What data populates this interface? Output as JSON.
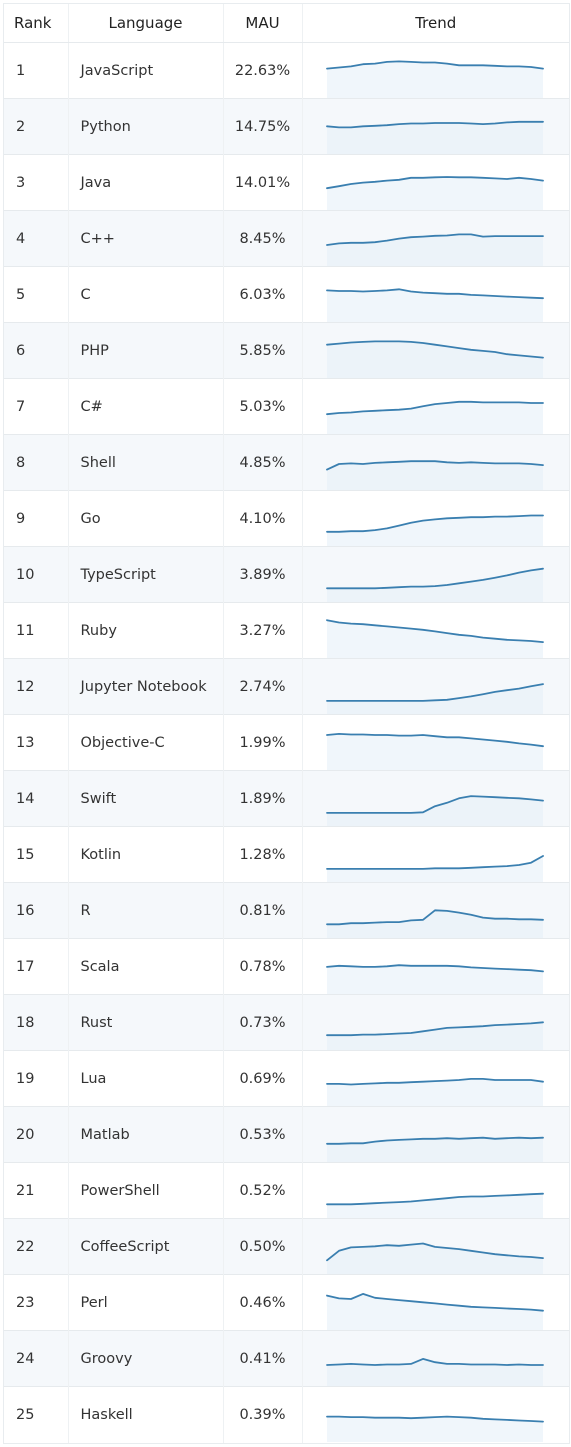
{
  "columns": {
    "rank": "Rank",
    "language": "Language",
    "mau": "MAU",
    "trend": "Trend"
  },
  "colors": {
    "line": "#3a7fb0",
    "fill": "#e3eef8",
    "alt_row": "#f5f8fb",
    "grid": "#e6eaed"
  },
  "rows": [
    {
      "rank": "1",
      "language": "JavaScript",
      "mau": "22.63%",
      "trend": [
        0.62,
        0.66,
        0.7,
        0.78,
        0.8,
        0.86,
        0.88,
        0.86,
        0.84,
        0.84,
        0.8,
        0.74,
        0.74,
        0.74,
        0.72,
        0.7,
        0.7,
        0.68,
        0.62
      ]
    },
    {
      "rank": "2",
      "language": "Python",
      "mau": "14.75%",
      "trend": [
        0.56,
        0.52,
        0.52,
        0.56,
        0.58,
        0.6,
        0.64,
        0.66,
        0.66,
        0.68,
        0.68,
        0.68,
        0.66,
        0.64,
        0.66,
        0.7,
        0.72,
        0.72,
        0.72
      ]
    },
    {
      "rank": "3",
      "language": "Java",
      "mau": "14.01%",
      "trend": [
        0.35,
        0.42,
        0.5,
        0.55,
        0.58,
        0.62,
        0.65,
        0.72,
        0.72,
        0.74,
        0.75,
        0.74,
        0.74,
        0.72,
        0.7,
        0.68,
        0.72,
        0.68,
        0.62
      ]
    },
    {
      "rank": "4",
      "language": "C++",
      "mau": "8.45%",
      "trend": [
        0.32,
        0.38,
        0.4,
        0.4,
        0.42,
        0.48,
        0.55,
        0.6,
        0.62,
        0.65,
        0.66,
        0.7,
        0.7,
        0.62,
        0.64,
        0.64,
        0.64,
        0.64,
        0.64
      ]
    },
    {
      "rank": "5",
      "language": "C",
      "mau": "6.03%",
      "trend": [
        0.7,
        0.68,
        0.68,
        0.66,
        0.68,
        0.7,
        0.74,
        0.66,
        0.62,
        0.6,
        0.58,
        0.58,
        0.54,
        0.52,
        0.5,
        0.48,
        0.46,
        0.44,
        0.42
      ]
    },
    {
      "rank": "6",
      "language": "PHP",
      "mau": "5.85%",
      "trend": [
        0.76,
        0.8,
        0.84,
        0.86,
        0.88,
        0.88,
        0.88,
        0.86,
        0.82,
        0.76,
        0.7,
        0.64,
        0.58,
        0.54,
        0.5,
        0.42,
        0.38,
        0.34,
        0.3
      ]
    },
    {
      "rank": "7",
      "language": "C#",
      "mau": "5.03%",
      "trend": [
        0.28,
        0.32,
        0.34,
        0.38,
        0.4,
        0.42,
        0.44,
        0.48,
        0.56,
        0.64,
        0.68,
        0.72,
        0.72,
        0.7,
        0.7,
        0.7,
        0.7,
        0.68,
        0.68
      ]
    },
    {
      "rank": "8",
      "language": "Shell",
      "mau": "4.85%",
      "trend": [
        0.3,
        0.5,
        0.52,
        0.5,
        0.54,
        0.56,
        0.58,
        0.6,
        0.6,
        0.6,
        0.56,
        0.54,
        0.56,
        0.54,
        0.52,
        0.52,
        0.52,
        0.5,
        0.46
      ]
    },
    {
      "rank": "9",
      "language": "Go",
      "mau": "4.10%",
      "trend": [
        0.08,
        0.08,
        0.1,
        0.1,
        0.14,
        0.2,
        0.3,
        0.4,
        0.48,
        0.52,
        0.56,
        0.58,
        0.6,
        0.6,
        0.62,
        0.62,
        0.64,
        0.66,
        0.66
      ]
    },
    {
      "rank": "10",
      "language": "TypeScript",
      "mau": "3.89%",
      "trend": [
        0.06,
        0.06,
        0.06,
        0.06,
        0.06,
        0.08,
        0.1,
        0.12,
        0.12,
        0.14,
        0.18,
        0.24,
        0.3,
        0.36,
        0.44,
        0.52,
        0.62,
        0.7,
        0.76
      ]
    },
    {
      "rank": "11",
      "language": "Ruby",
      "mau": "3.27%",
      "trend": [
        0.92,
        0.84,
        0.8,
        0.78,
        0.74,
        0.7,
        0.66,
        0.62,
        0.58,
        0.52,
        0.46,
        0.4,
        0.36,
        0.3,
        0.26,
        0.22,
        0.2,
        0.18,
        0.14
      ]
    },
    {
      "rank": "12",
      "language": "Jupyter Notebook",
      "mau": "2.74%",
      "trend": [
        0.04,
        0.04,
        0.04,
        0.04,
        0.04,
        0.04,
        0.04,
        0.04,
        0.04,
        0.06,
        0.08,
        0.14,
        0.2,
        0.28,
        0.36,
        0.42,
        0.48,
        0.56,
        0.64
      ]
    },
    {
      "rank": "13",
      "language": "Objective-C",
      "mau": "1.99%",
      "trend": [
        0.82,
        0.86,
        0.84,
        0.84,
        0.82,
        0.82,
        0.8,
        0.8,
        0.82,
        0.78,
        0.74,
        0.74,
        0.7,
        0.66,
        0.62,
        0.58,
        0.52,
        0.48,
        0.42
      ]
    },
    {
      "rank": "14",
      "language": "Swift",
      "mau": "1.89%",
      "trend": [
        0.04,
        0.04,
        0.04,
        0.04,
        0.04,
        0.04,
        0.04,
        0.04,
        0.06,
        0.28,
        0.4,
        0.56,
        0.64,
        0.62,
        0.6,
        0.58,
        0.56,
        0.52,
        0.48
      ]
    },
    {
      "rank": "15",
      "language": "Kotlin",
      "mau": "1.28%",
      "trend": [
        0.04,
        0.04,
        0.04,
        0.04,
        0.04,
        0.04,
        0.04,
        0.04,
        0.04,
        0.06,
        0.06,
        0.06,
        0.08,
        0.1,
        0.12,
        0.14,
        0.18,
        0.26,
        0.5
      ]
    },
    {
      "rank": "16",
      "language": "R",
      "mau": "0.81%",
      "trend": [
        0.06,
        0.06,
        0.1,
        0.1,
        0.12,
        0.14,
        0.14,
        0.2,
        0.22,
        0.56,
        0.54,
        0.48,
        0.4,
        0.3,
        0.26,
        0.26,
        0.24,
        0.24,
        0.22
      ]
    },
    {
      "rank": "17",
      "language": "Scala",
      "mau": "0.78%",
      "trend": [
        0.54,
        0.58,
        0.56,
        0.54,
        0.54,
        0.56,
        0.6,
        0.58,
        0.58,
        0.58,
        0.58,
        0.56,
        0.52,
        0.5,
        0.48,
        0.46,
        0.44,
        0.42,
        0.38
      ]
    },
    {
      "rank": "18",
      "language": "Rust",
      "mau": "0.73%",
      "trend": [
        0.1,
        0.1,
        0.1,
        0.12,
        0.12,
        0.14,
        0.16,
        0.18,
        0.24,
        0.3,
        0.36,
        0.38,
        0.4,
        0.42,
        0.46,
        0.48,
        0.5,
        0.52,
        0.56
      ]
    },
    {
      "rank": "19",
      "language": "Lua",
      "mau": "0.69%",
      "trend": [
        0.36,
        0.36,
        0.34,
        0.36,
        0.38,
        0.4,
        0.4,
        0.42,
        0.44,
        0.46,
        0.48,
        0.5,
        0.54,
        0.54,
        0.5,
        0.5,
        0.5,
        0.5,
        0.44
      ]
    },
    {
      "rank": "20",
      "language": "Matlab",
      "mau": "0.53%",
      "trend": [
        0.22,
        0.22,
        0.24,
        0.24,
        0.3,
        0.34,
        0.36,
        0.38,
        0.4,
        0.4,
        0.42,
        0.4,
        0.42,
        0.44,
        0.4,
        0.42,
        0.44,
        0.42,
        0.44
      ]
    },
    {
      "rank": "21",
      "language": "PowerShell",
      "mau": "0.52%",
      "trend": [
        0.06,
        0.06,
        0.06,
        0.08,
        0.1,
        0.12,
        0.14,
        0.16,
        0.2,
        0.24,
        0.28,
        0.32,
        0.34,
        0.34,
        0.36,
        0.38,
        0.4,
        0.42,
        0.44
      ]
    },
    {
      "rank": "22",
      "language": "CoffeeScript",
      "mau": "0.50%",
      "trend": [
        0.06,
        0.4,
        0.52,
        0.54,
        0.56,
        0.6,
        0.58,
        0.62,
        0.66,
        0.54,
        0.5,
        0.46,
        0.4,
        0.34,
        0.28,
        0.24,
        0.2,
        0.18,
        0.14
      ]
    },
    {
      "rank": "23",
      "language": "Perl",
      "mau": "0.46%",
      "trend": [
        0.8,
        0.7,
        0.68,
        0.86,
        0.72,
        0.68,
        0.64,
        0.6,
        0.56,
        0.52,
        0.48,
        0.44,
        0.4,
        0.38,
        0.36,
        0.34,
        0.32,
        0.3,
        0.26
      ]
    },
    {
      "rank": "24",
      "language": "Groovy",
      "mau": "0.41%",
      "trend": [
        0.32,
        0.34,
        0.36,
        0.34,
        0.32,
        0.34,
        0.34,
        0.36,
        0.54,
        0.42,
        0.36,
        0.36,
        0.34,
        0.34,
        0.34,
        0.32,
        0.34,
        0.32,
        0.32
      ]
    },
    {
      "rank": "25",
      "language": "Haskell",
      "mau": "0.39%",
      "trend": [
        0.48,
        0.48,
        0.46,
        0.46,
        0.44,
        0.44,
        0.44,
        0.42,
        0.44,
        0.46,
        0.48,
        0.46,
        0.44,
        0.4,
        0.38,
        0.36,
        0.34,
        0.32,
        0.3
      ]
    }
  ]
}
